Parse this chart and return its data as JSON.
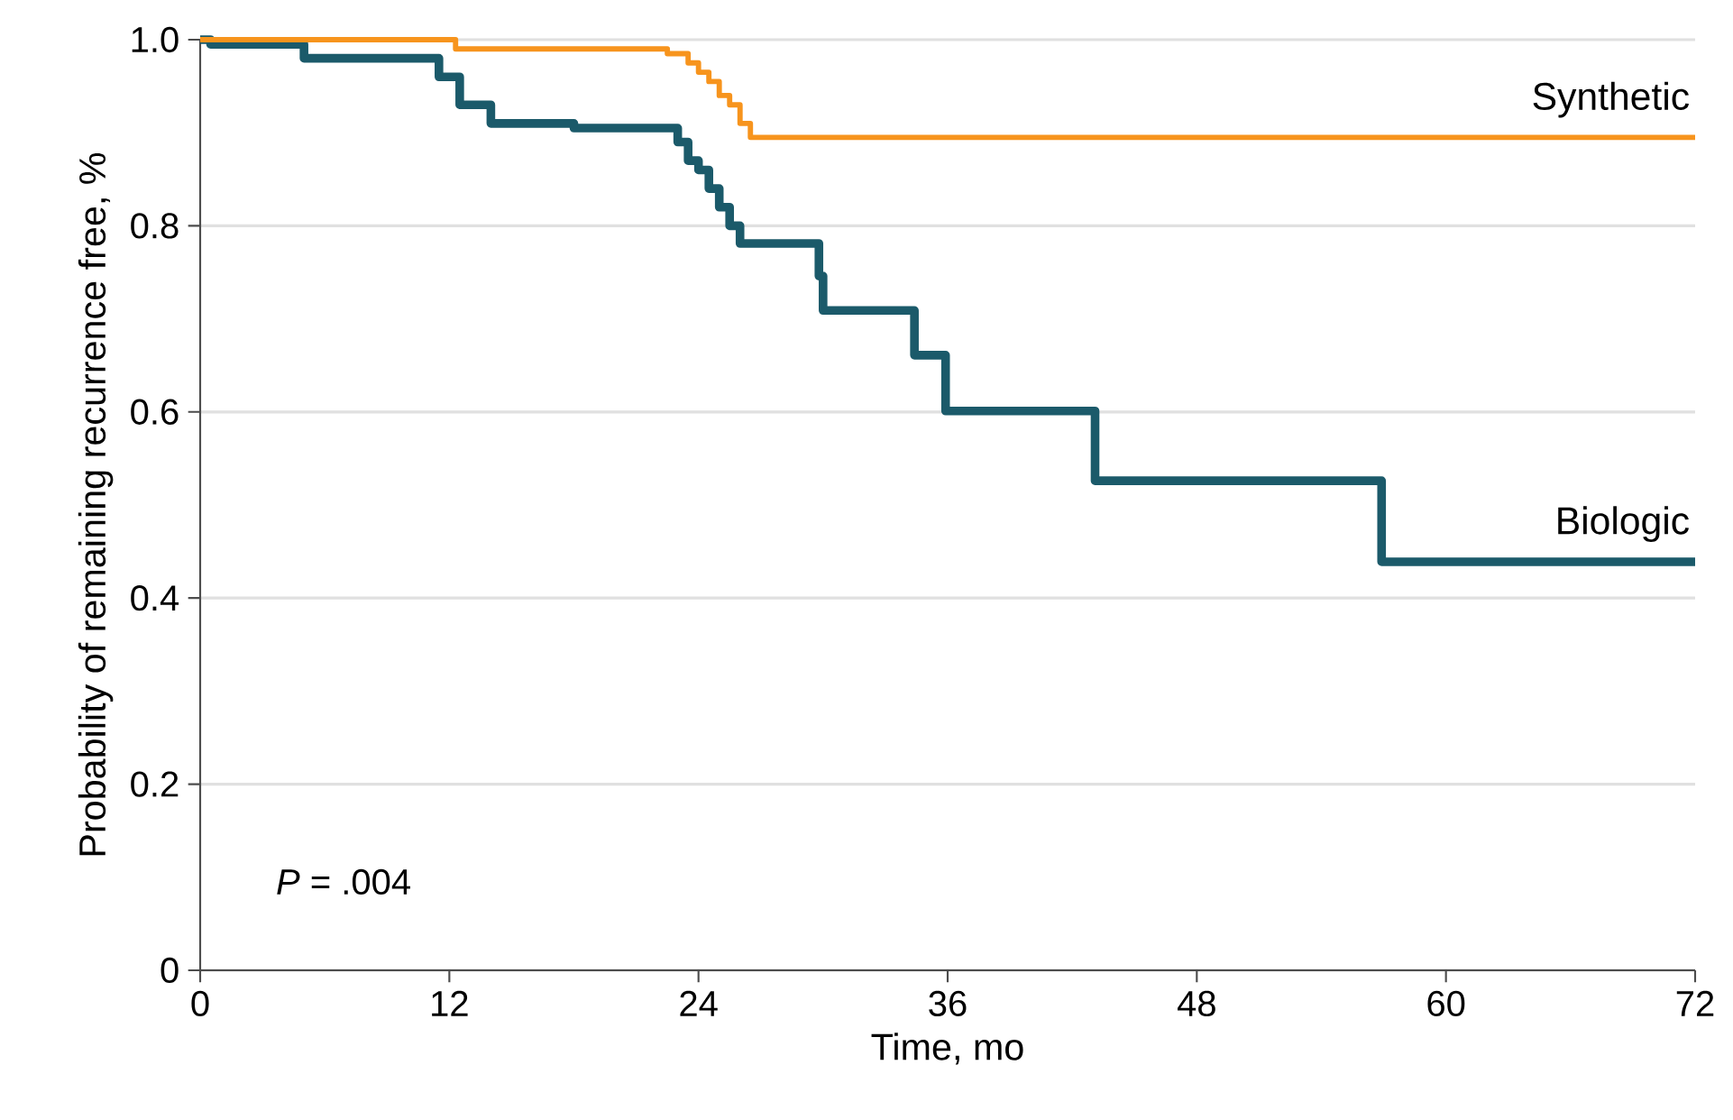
{
  "chart_data": {
    "type": "step",
    "xlabel": "Time, mo",
    "ylabel": "Probability of remaining recurrence free, %",
    "xlim": [
      0,
      72
    ],
    "xticks": [
      0,
      12,
      24,
      36,
      48,
      60,
      72
    ],
    "ylim": [
      0,
      1
    ],
    "yticks": [
      0,
      0.2,
      0.4,
      0.6,
      0.8,
      {
        "value": 1,
        "label": "1.0"
      }
    ],
    "grid": "y",
    "series": [
      {
        "name": "Synthetic",
        "color": "#f7941d",
        "x": [
          0,
          12.3,
          22.5,
          23.5,
          24,
          24.5,
          25,
          25.5,
          26,
          26.5,
          72
        ],
        "values": [
          1.0,
          0.99,
          0.985,
          0.975,
          0.965,
          0.955,
          0.94,
          0.93,
          0.91,
          0.895,
          0.895
        ]
      },
      {
        "name": "Biologic",
        "color": "#1b5a6a",
        "x": [
          0,
          0.5,
          5,
          11.5,
          12.5,
          14,
          18,
          23,
          23.5,
          24,
          24.5,
          25,
          25.5,
          26,
          29.8,
          30.0,
          34.4,
          35.9,
          43.1,
          56.9,
          72
        ],
        "values": [
          1.0,
          0.995,
          0.98,
          0.96,
          0.93,
          0.91,
          0.905,
          0.89,
          0.87,
          0.86,
          0.84,
          0.82,
          0.8,
          0.781,
          0.746,
          0.709,
          0.661,
          0.601,
          0.526,
          0.439,
          0.439
        ]
      }
    ],
    "annotations": [
      "*P* = .004"
    ]
  }
}
